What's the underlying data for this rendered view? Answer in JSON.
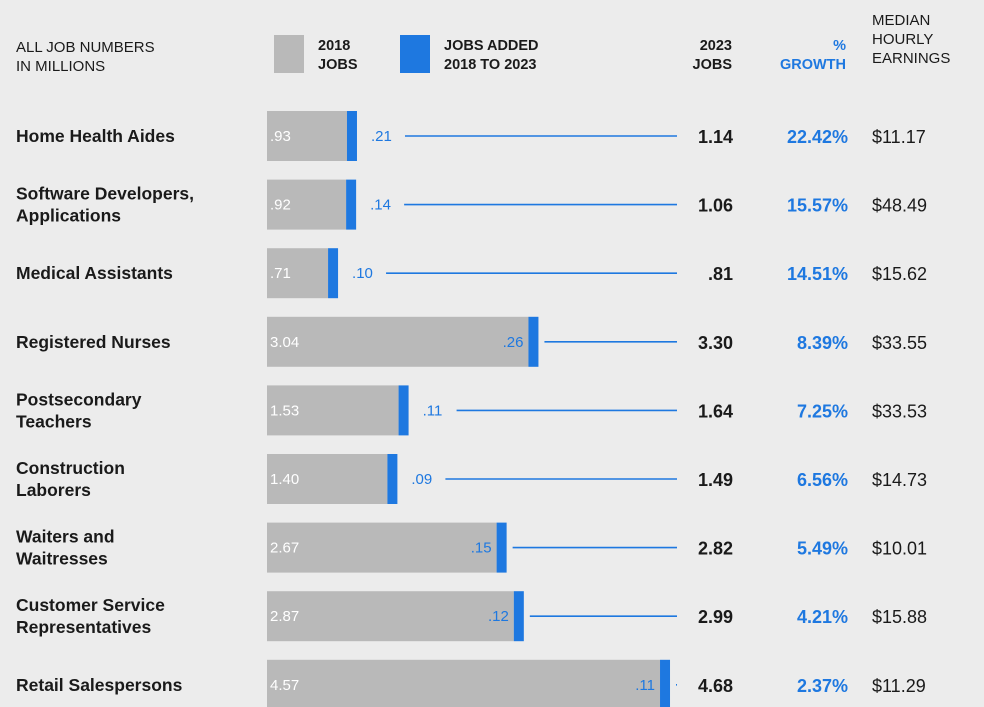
{
  "header": {
    "note_line1": "ALL JOB NUMBERS",
    "note_line2": "IN MILLIONS",
    "legend_2018_line1": "2018",
    "legend_2018_line2": "JOBS",
    "legend_added_line1": "JOBS ADDED",
    "legend_added_line2": "2018 TO 2023",
    "col_2023_line1": "2023",
    "col_2023_line2": "JOBS",
    "col_growth_line1": "%",
    "col_growth_line2": "GROWTH",
    "col_earn_line1": "MEDIAN",
    "col_earn_line2": "HOURLY",
    "col_earn_line3": "EARNINGS"
  },
  "colors": {
    "jobs_2018": "#b9b9b9",
    "jobs_added": "#1e78e0",
    "text": "#1a1a1a",
    "background": "#ececec"
  },
  "chart_data": {
    "type": "bar",
    "stacked": true,
    "orientation": "horizontal",
    "categories": [
      [
        "Home Health Aides"
      ],
      [
        "Software Developers,",
        "Applications"
      ],
      [
        "Medical Assistants"
      ],
      [
        "Registered Nurses"
      ],
      [
        "Postsecondary",
        "Teachers"
      ],
      [
        "Construction",
        "Laborers"
      ],
      [
        "Waiters and",
        "Waitresses"
      ],
      [
        "Customer Service",
        "Representatives"
      ],
      [
        "Retail Salespersons"
      ]
    ],
    "series": [
      {
        "name": "2018 JOBS",
        "values": [
          0.93,
          0.92,
          0.71,
          3.04,
          1.53,
          1.4,
          2.67,
          2.87,
          4.57
        ],
        "labels": [
          ".93",
          ".92",
          ".71",
          "3.04",
          "1.53",
          "1.40",
          "2.67",
          "2.87",
          "4.57"
        ]
      },
      {
        "name": "JOBS ADDED 2018 TO 2023",
        "values": [
          0.21,
          0.14,
          0.1,
          0.26,
          0.11,
          0.09,
          0.15,
          0.12,
          0.11
        ],
        "labels": [
          ".21",
          ".14",
          ".10",
          ".26",
          ".11",
          ".09",
          ".15",
          ".12",
          ".11"
        ]
      }
    ],
    "jobs_2023": [
      "1.14",
      "1.06",
      ".81",
      "3.30",
      "1.64",
      "1.49",
      "2.82",
      "2.99",
      "4.68"
    ],
    "growth_pct": [
      "22.42%",
      "15.57%",
      "14.51%",
      "8.39%",
      "7.25%",
      "6.56%",
      "5.49%",
      "4.21%",
      "2.37%"
    ],
    "median_hourly_earnings": [
      "$11.17",
      "$48.49",
      "$15.62",
      "$33.55",
      "$33.53",
      "$14.73",
      "$10.01",
      "$15.88",
      "$11.29"
    ]
  }
}
